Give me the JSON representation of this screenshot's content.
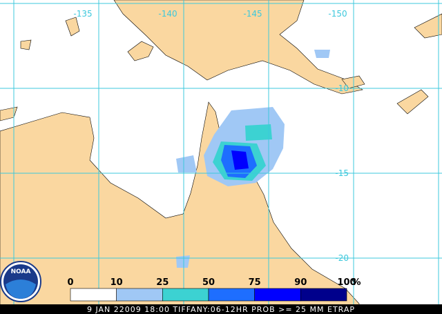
{
  "map": {
    "lon_labels": [
      "-135",
      "-140",
      "-145",
      "-150"
    ],
    "lat_labels": [
      "-10",
      "-15",
      "-20"
    ],
    "legend": {
      "labels": [
        "0",
        "10",
        "25",
        "50",
        "75",
        "90",
        "100"
      ],
      "unit": "%",
      "colors": [
        "#ffffff",
        "#a0c8f5",
        "#3cd2d2",
        "#1e6eff",
        "#0000ff",
        "#00008c"
      ]
    },
    "logo": "NOAA",
    "caption": "9 JAN 22009 18:00 TIFFANY:06-12HR PROB >= 25 MM ETRAP"
  }
}
